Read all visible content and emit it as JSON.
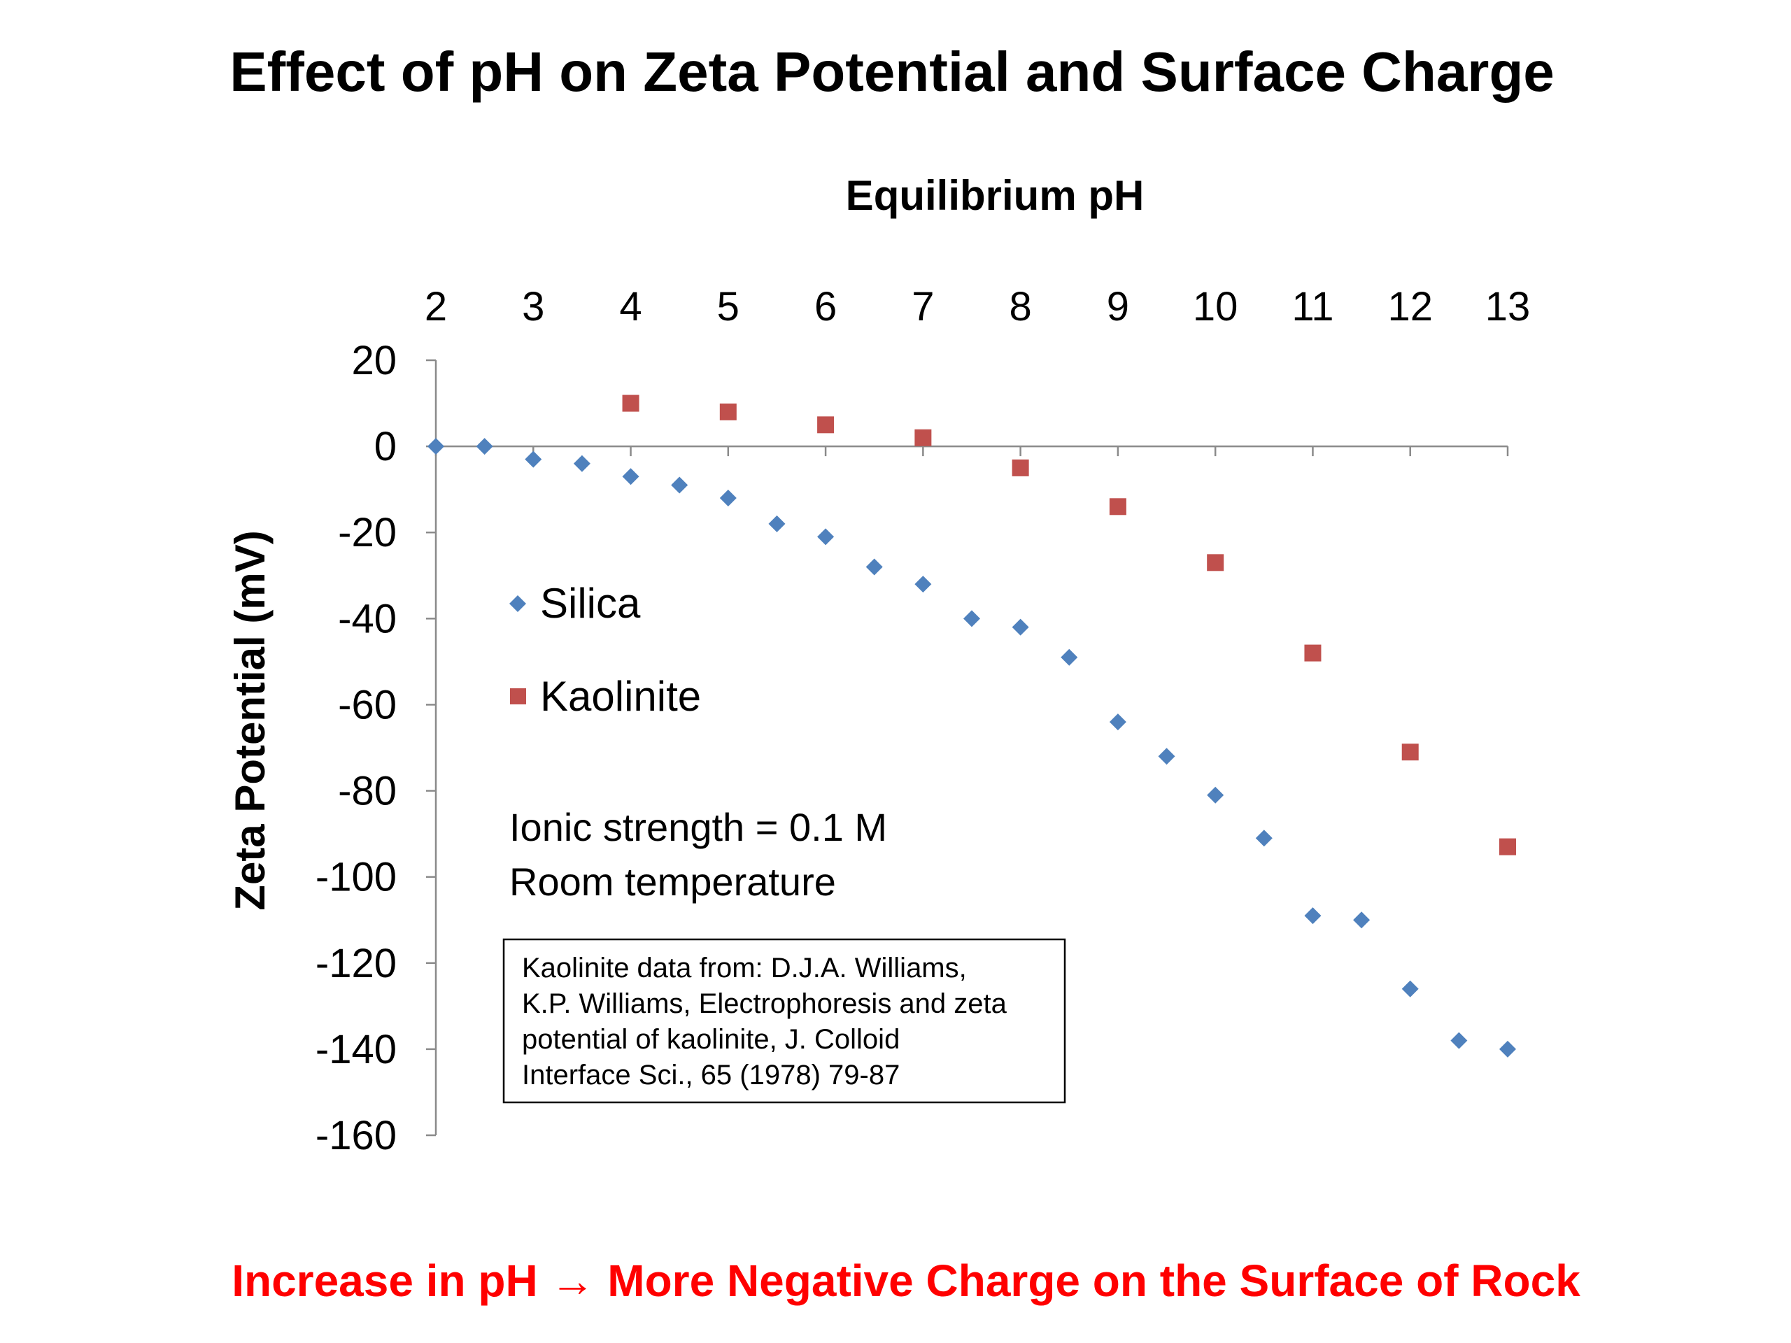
{
  "chart_data": {
    "type": "scatter",
    "title": "Effect of pH on Zeta Potential and Surface Charge",
    "xlabel": "Equilibrium pH",
    "ylabel": "Zeta Potential (mV)",
    "xlim": [
      2,
      13
    ],
    "ylim": [
      -160,
      20
    ],
    "x_ticks": [
      2,
      3,
      4,
      5,
      6,
      7,
      8,
      9,
      10,
      11,
      12,
      13
    ],
    "y_ticks": [
      20,
      0,
      -20,
      -40,
      -60,
      -80,
      -100,
      -120,
      -140,
      -160
    ],
    "x_axis_position": "top",
    "grid": false,
    "legend_position": "left",
    "series": [
      {
        "name": "Silica",
        "marker": "diamond",
        "color": "#4f81bd",
        "points": [
          {
            "x": 2,
            "y": 0
          },
          {
            "x": 2.5,
            "y": 0
          },
          {
            "x": 3,
            "y": -3
          },
          {
            "x": 3.5,
            "y": -4
          },
          {
            "x": 4,
            "y": -7
          },
          {
            "x": 4.5,
            "y": -9
          },
          {
            "x": 5,
            "y": -12
          },
          {
            "x": 5.5,
            "y": -18
          },
          {
            "x": 6,
            "y": -21
          },
          {
            "x": 6.5,
            "y": -28
          },
          {
            "x": 7,
            "y": -32
          },
          {
            "x": 7.5,
            "y": -40
          },
          {
            "x": 8,
            "y": -42
          },
          {
            "x": 8.5,
            "y": -49
          },
          {
            "x": 9,
            "y": -64
          },
          {
            "x": 9.5,
            "y": -72
          },
          {
            "x": 10,
            "y": -81
          },
          {
            "x": 10.5,
            "y": -91
          },
          {
            "x": 11,
            "y": -109
          },
          {
            "x": 11.5,
            "y": -110
          },
          {
            "x": 12,
            "y": -126
          },
          {
            "x": 12.5,
            "y": -138
          },
          {
            "x": 13,
            "y": -140
          }
        ]
      },
      {
        "name": "Kaolinite",
        "marker": "square",
        "color": "#c0504d",
        "points": [
          {
            "x": 4,
            "y": 10
          },
          {
            "x": 5,
            "y": 8
          },
          {
            "x": 6,
            "y": 5
          },
          {
            "x": 7,
            "y": 2
          },
          {
            "x": 8,
            "y": -5
          },
          {
            "x": 9,
            "y": -14
          },
          {
            "x": 10,
            "y": -27
          },
          {
            "x": 11,
            "y": -48
          },
          {
            "x": 12,
            "y": -71
          },
          {
            "x": 13,
            "y": -93
          }
        ]
      }
    ],
    "annotations": {
      "conditions": [
        "Ionic strength = 0.1 M",
        "Room temperature"
      ],
      "source": [
        "Kaolinite data from: D.J.A. Williams,",
        "K.P. Williams, Electrophoresis and zeta",
        "potential of kaolinite, J. Colloid",
        "Interface Sci., 65 (1978) 79-87"
      ]
    }
  },
  "conclusion": "Increase in pH → More Negative Charge on the Surface of Rock",
  "colors": {
    "conclusion": "#ff0000",
    "axis": "#8a8a8a"
  }
}
